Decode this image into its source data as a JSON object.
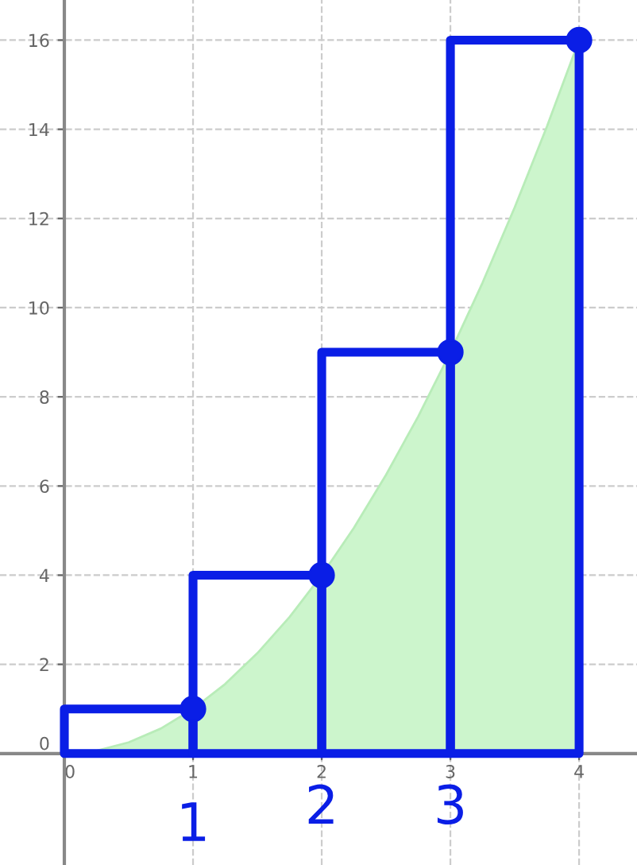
{
  "chart_data": {
    "type": "area",
    "xlim": [
      -0.5,
      4.45
    ],
    "ylim": [
      -2.5,
      16.9
    ],
    "xticks": [
      0,
      1,
      2,
      3,
      4
    ],
    "yticks": [
      0,
      2,
      4,
      6,
      8,
      10,
      12,
      14,
      16
    ],
    "grid": true,
    "series": [
      {
        "color": "#ccf5cc",
        "x": [
          0,
          0.25,
          0.5,
          0.75,
          1,
          1.25,
          1.5,
          1.75,
          2,
          2.25,
          2.5,
          2.75,
          3,
          3.25,
          3.5,
          3.75,
          4
        ],
        "values": [
          0,
          0.06,
          0.25,
          0.56,
          1,
          1.56,
          2.25,
          3.06,
          4,
          5.06,
          6.25,
          7.56,
          9,
          10.56,
          12.25,
          14.06,
          16
        ]
      },
      {
        "type": "bar",
        "color": "#0a1ee6",
        "x": [
          0.5,
          1.5,
          2.5,
          3.5
        ],
        "values": [
          1,
          4,
          9,
          16
        ]
      },
      {
        "type": "scatter",
        "color": "#0a1ee6",
        "marker": "circle",
        "x": [
          1,
          2,
          3,
          4
        ],
        "values": [
          1,
          4,
          9,
          16
        ]
      }
    ],
    "annotations": [
      "1",
      "2",
      "3"
    ]
  }
}
